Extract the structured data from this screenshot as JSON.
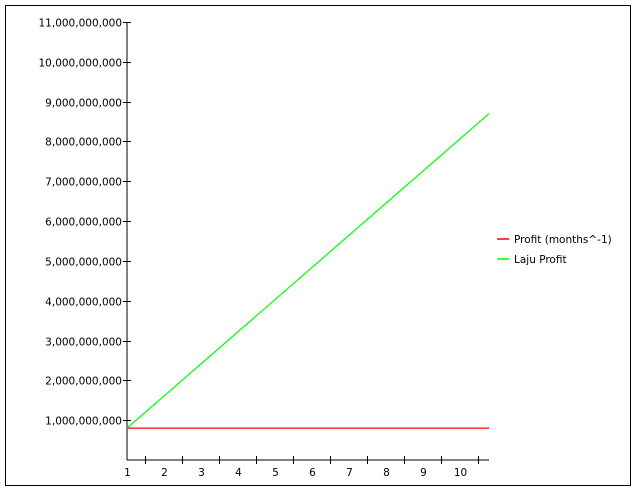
{
  "chart_data": {
    "type": "line",
    "title": "",
    "xlabel": "",
    "ylabel": "",
    "x": [
      0.5,
      10.3
    ],
    "xlim": [
      0.5,
      10.3
    ],
    "ylim": [
      0,
      11000000000
    ],
    "x_ticks": [
      1,
      2,
      3,
      4,
      5,
      6,
      7,
      8,
      9,
      10
    ],
    "x_tick_labels": [
      "1",
      "2",
      "3",
      "4",
      "5",
      "6",
      "7",
      "8",
      "9",
      "10"
    ],
    "y_ticks": [
      1000000000,
      2000000000,
      3000000000,
      4000000000,
      5000000000,
      6000000000,
      7000000000,
      8000000000,
      9000000000,
      10000000000,
      11000000000
    ],
    "y_tick_labels": [
      "1,000,000,000",
      "2,000,000,000",
      "3,000,000,000",
      "4,000,000,000",
      "5,000,000,000",
      "6,000,000,000",
      "7,000,000,000",
      "8,000,000,000",
      "9,000,000,000",
      "10,000,000,000",
      "11,000,000,000"
    ],
    "series": [
      {
        "name": "Profit (months^-1)",
        "color": "#ff0000",
        "values": [
          800000000,
          800000000
        ]
      },
      {
        "name": "Laju Profit",
        "color": "#00ff00",
        "values": [
          800000000,
          8700000000
        ]
      }
    ],
    "legend_position": "right",
    "grid": false
  }
}
